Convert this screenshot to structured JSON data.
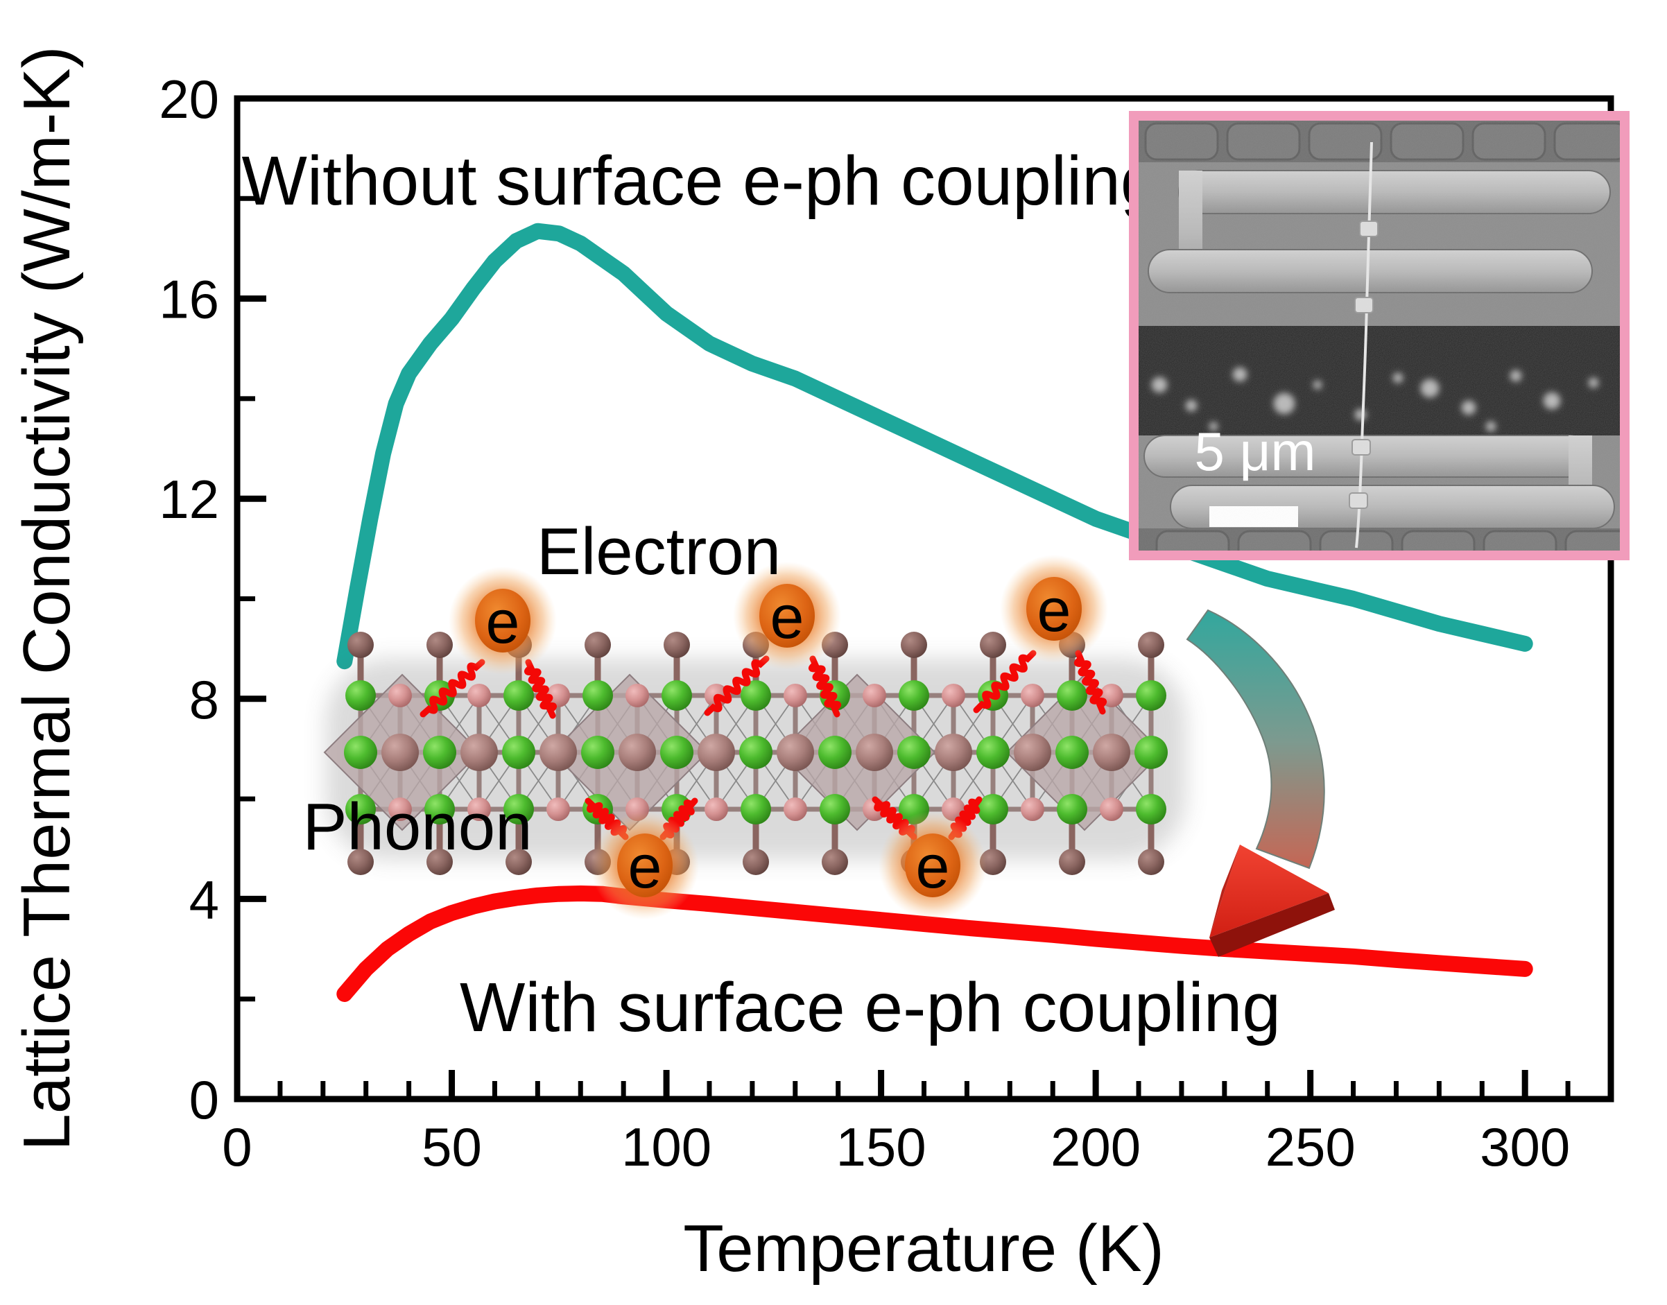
{
  "figure": {
    "description": "Lattice thermal conductivity vs temperature of a nanowire with and without surface electron-phonon coupling, with SEM inset and electron-phonon lattice illustration"
  },
  "chart_data": {
    "type": "line",
    "xlabel": "Temperature (K)",
    "ylabel": "Lattice Thermal Conductivity (W/m-K)",
    "xlim": [
      0,
      320
    ],
    "ylim": [
      0,
      20
    ],
    "x_major_ticks": [
      0,
      50,
      100,
      150,
      200,
      250,
      300
    ],
    "x_minor_step": 10,
    "y_major_ticks": [
      0,
      4,
      8,
      12,
      16,
      20
    ],
    "y_minor_step": 2,
    "grid": false,
    "legend_position": "none",
    "series": [
      {
        "name": "Without surface e-ph coupling",
        "color": "#1ea79b",
        "points": [
          [
            25,
            8.75
          ],
          [
            28,
            10.2
          ],
          [
            31,
            11.6
          ],
          [
            34,
            12.9
          ],
          [
            37,
            13.9
          ],
          [
            40,
            14.5
          ],
          [
            45,
            15.1
          ],
          [
            50,
            15.6
          ],
          [
            55,
            16.2
          ],
          [
            60,
            16.75
          ],
          [
            65,
            17.15
          ],
          [
            70,
            17.35
          ],
          [
            75,
            17.3
          ],
          [
            80,
            17.1
          ],
          [
            85,
            16.8
          ],
          [
            90,
            16.5
          ],
          [
            95,
            16.1
          ],
          [
            100,
            15.7
          ],
          [
            110,
            15.1
          ],
          [
            120,
            14.7
          ],
          [
            130,
            14.4
          ],
          [
            140,
            14.0
          ],
          [
            150,
            13.6
          ],
          [
            160,
            13.2
          ],
          [
            170,
            12.8
          ],
          [
            180,
            12.4
          ],
          [
            190,
            12.0
          ],
          [
            200,
            11.6
          ],
          [
            210,
            11.3
          ],
          [
            220,
            11.0
          ],
          [
            230,
            10.7
          ],
          [
            240,
            10.4
          ],
          [
            250,
            10.2
          ],
          [
            260,
            10.0
          ],
          [
            270,
            9.75
          ],
          [
            280,
            9.5
          ],
          [
            290,
            9.3
          ],
          [
            300,
            9.1
          ]
        ]
      },
      {
        "name": "With surface e-ph coupling",
        "color": "#fb0707",
        "points": [
          [
            25,
            2.1
          ],
          [
            30,
            2.6
          ],
          [
            35,
            3.0
          ],
          [
            40,
            3.3
          ],
          [
            45,
            3.55
          ],
          [
            50,
            3.72
          ],
          [
            55,
            3.85
          ],
          [
            60,
            3.95
          ],
          [
            65,
            4.02
          ],
          [
            70,
            4.07
          ],
          [
            75,
            4.1
          ],
          [
            80,
            4.11
          ],
          [
            85,
            4.1
          ],
          [
            90,
            4.05
          ],
          [
            100,
            3.97
          ],
          [
            110,
            3.9
          ],
          [
            120,
            3.82
          ],
          [
            130,
            3.74
          ],
          [
            140,
            3.66
          ],
          [
            150,
            3.58
          ],
          [
            160,
            3.5
          ],
          [
            170,
            3.42
          ],
          [
            180,
            3.35
          ],
          [
            190,
            3.28
          ],
          [
            200,
            3.2
          ],
          [
            210,
            3.13
          ],
          [
            220,
            3.06
          ],
          [
            230,
            3.0
          ],
          [
            240,
            2.95
          ],
          [
            250,
            2.9
          ],
          [
            260,
            2.85
          ],
          [
            270,
            2.78
          ],
          [
            280,
            2.72
          ],
          [
            290,
            2.66
          ],
          [
            300,
            2.6
          ]
        ]
      }
    ]
  },
  "annotations": {
    "electron_label": "Electron",
    "phonon_label": "Phonon",
    "electron_symbol": "e"
  },
  "inset": {
    "content": "SEM micrograph of suspended micro-thermometry device with bridging nanowire",
    "scale_bar_label": "5 μm",
    "border_color": "#f19cbb"
  },
  "colors": {
    "without_coupling_curve": "#1ea79b",
    "with_coupling_curve": "#fb0707",
    "arrow_top": "#2ea89e",
    "arrow_bottom": "#e23a28",
    "electron_glow": "#e06212",
    "inset_border": "#f19cbb"
  }
}
